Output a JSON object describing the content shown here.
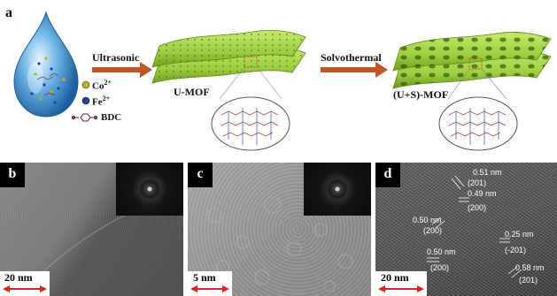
{
  "figure": {
    "panel_a": {
      "letter": "a",
      "step1_label": "Ultrasonic",
      "step2_label": "Solvothermal",
      "product1": "U-MOF",
      "product2": "(U+S)-MOF",
      "legend": {
        "co": "Co",
        "co_charge": "2+",
        "fe": "Fe",
        "fe_charge": "2+",
        "bdc": "BDC"
      }
    },
    "panel_b": {
      "letter": "b",
      "scale": "20 nm"
    },
    "panel_c": {
      "letter": "c",
      "scale": "5 nm"
    },
    "panel_d": {
      "letter": "d",
      "scale": "20 nm",
      "annotations": [
        {
          "d": "0.51 nm",
          "hkl": "(201)"
        },
        {
          "d": "0.49 nm",
          "hkl": "(200)"
        },
        {
          "d": "0.50 nm",
          "hkl": "(200)"
        },
        {
          "d": "0.50 nm",
          "hkl": "(200)"
        },
        {
          "d": "0.25 nm",
          "hkl": "(-201)"
        },
        {
          "d": "0.58 nm",
          "hkl": "(201)"
        }
      ]
    }
  },
  "colors": {
    "arrow": "#c0542a",
    "sheet_green": "#9ccd3f",
    "sheet_dark": "#6f9d1f",
    "drop_blue": "#2f86c6",
    "co_dot": "#b6b81a",
    "fe_dot": "#2a3f9a",
    "scale_arrow": "#e2231a"
  }
}
